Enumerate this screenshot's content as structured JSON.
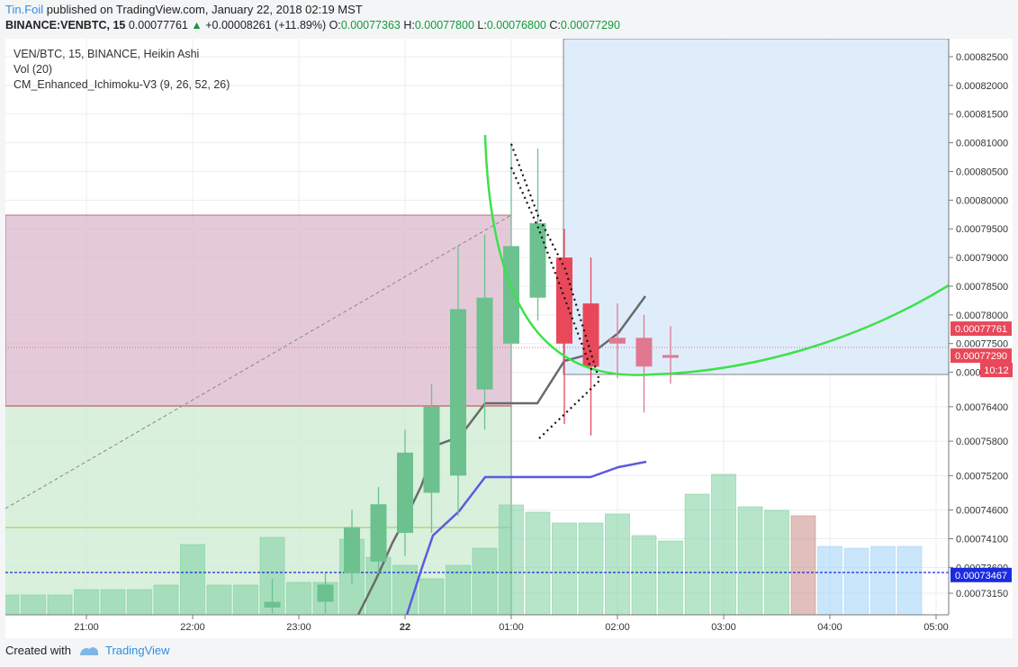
{
  "header": {
    "author": "Tin.Foil",
    "published": "published on TradingView.com, January 22, 2018 02:19 MST",
    "symbol": "BINANCE:VENBTC, 15",
    "last": "0.00077761",
    "change": "+0.00008261 (+11.89%)",
    "o_label": "O:",
    "o_value": "0.00077363",
    "h_label": "H:",
    "h_value": "0.00077800",
    "l_label": "L:",
    "l_value": "0.00076800",
    "c_label": "C:",
    "c_value": "0.00077290"
  },
  "legend": {
    "line1": "VEN/BTC, 15, BINANCE, Heikin Ashi",
    "line2": "Vol (20)",
    "line3": "CM_Enhanced_Ichimoku-V3 (9, 26, 52, 26)"
  },
  "footer": {
    "created_with": "Created with",
    "brand": "TradingView"
  },
  "colors": {
    "up": "#6cc18f",
    "down": "#e8485a",
    "down_faded": "#e07890",
    "vol_up": "#7ccf9e",
    "vol_down": "#c98b86",
    "projection_vol": "#9ed2f7",
    "green_curve": "#3ee04b",
    "gray_line": "#6a6a6a",
    "blue_line": "#5b5be0",
    "dashed_level": "#1a2be0"
  },
  "chart_data": {
    "type": "candlestick",
    "y_axis_ticks": [
      "0.00082500",
      "0.00082000",
      "0.00081500",
      "0.00081000",
      "0.00080500",
      "0.00080000",
      "0.00079500",
      "0.00079000",
      "0.00078500",
      "0.00078000",
      "0.00077500",
      "0.00077000",
      "0.00076400",
      "0.00075800",
      "0.00075200",
      "0.00074600",
      "0.00074100",
      "0.00073600",
      "0.00073150"
    ],
    "x_axis_ticks": [
      "21:00",
      "22:00",
      "23:00",
      "22",
      "01:00",
      "02:00",
      "03:00",
      "04:00",
      "05:00"
    ],
    "price_labels": [
      {
        "text": "0.00077761",
        "value": 0.00077761,
        "color": "#e8485a"
      },
      {
        "text": "0.00077290",
        "value": 0.0007729,
        "color": "#e8485a"
      },
      {
        "text": "10:12",
        "value": 0.0007704,
        "color": "#e8485a"
      },
      {
        "text": "0.00073467",
        "value": 0.00073467,
        "color": "#1a2be0"
      }
    ],
    "candles": [
      {
        "time": "22:45",
        "open": 0.00073,
        "high": 0.000734,
        "low": 0.000728,
        "close": 0.000729,
        "dir": "up"
      },
      {
        "time": "23:15",
        "open": 0.00073,
        "high": 0.000735,
        "low": 0.000728,
        "close": 0.000733,
        "dir": "up"
      },
      {
        "time": "23:30",
        "open": 0.000735,
        "high": 0.000746,
        "low": 0.000733,
        "close": 0.000743,
        "dir": "up"
      },
      {
        "time": "23:45",
        "open": 0.000737,
        "high": 0.00075,
        "low": 0.000735,
        "close": 0.000747,
        "dir": "up"
      },
      {
        "time": "00:00",
        "open": 0.000742,
        "high": 0.00076,
        "low": 0.000738,
        "close": 0.000756,
        "dir": "up"
      },
      {
        "time": "00:15",
        "open": 0.000749,
        "high": 0.000768,
        "low": 0.000742,
        "close": 0.000764,
        "dir": "up"
      },
      {
        "time": "00:30",
        "open": 0.000752,
        "high": 0.000792,
        "low": 0.000745,
        "close": 0.000781,
        "dir": "up"
      },
      {
        "time": "00:45",
        "open": 0.000767,
        "high": 0.000794,
        "low": 0.00076,
        "close": 0.000783,
        "dir": "up"
      },
      {
        "time": "01:00",
        "open": 0.000775,
        "high": 0.00081,
        "low": 0.000772,
        "close": 0.000792,
        "dir": "up"
      },
      {
        "time": "01:15",
        "open": 0.000783,
        "high": 0.000809,
        "low": 0.000779,
        "close": 0.000796,
        "dir": "up"
      },
      {
        "time": "01:30",
        "open": 0.00079,
        "high": 0.000795,
        "low": 0.000761,
        "close": 0.000775,
        "dir": "down"
      },
      {
        "time": "01:45",
        "open": 0.000782,
        "high": 0.00079,
        "low": 0.000759,
        "close": 0.000771,
        "dir": "down"
      },
      {
        "time": "02:00",
        "open": 0.000776,
        "high": 0.000782,
        "low": 0.000769,
        "close": 0.000775,
        "dir": "down_faded"
      },
      {
        "time": "02:15",
        "open": 0.000776,
        "high": 0.00078,
        "low": 0.000763,
        "close": 0.000771,
        "dir": "down_faded"
      },
      {
        "time": "02:30",
        "open": 0.000773,
        "high": 0.000778,
        "low": 0.000768,
        "close": 0.000773,
        "dir": "down_faded"
      }
    ],
    "grid": true
  }
}
